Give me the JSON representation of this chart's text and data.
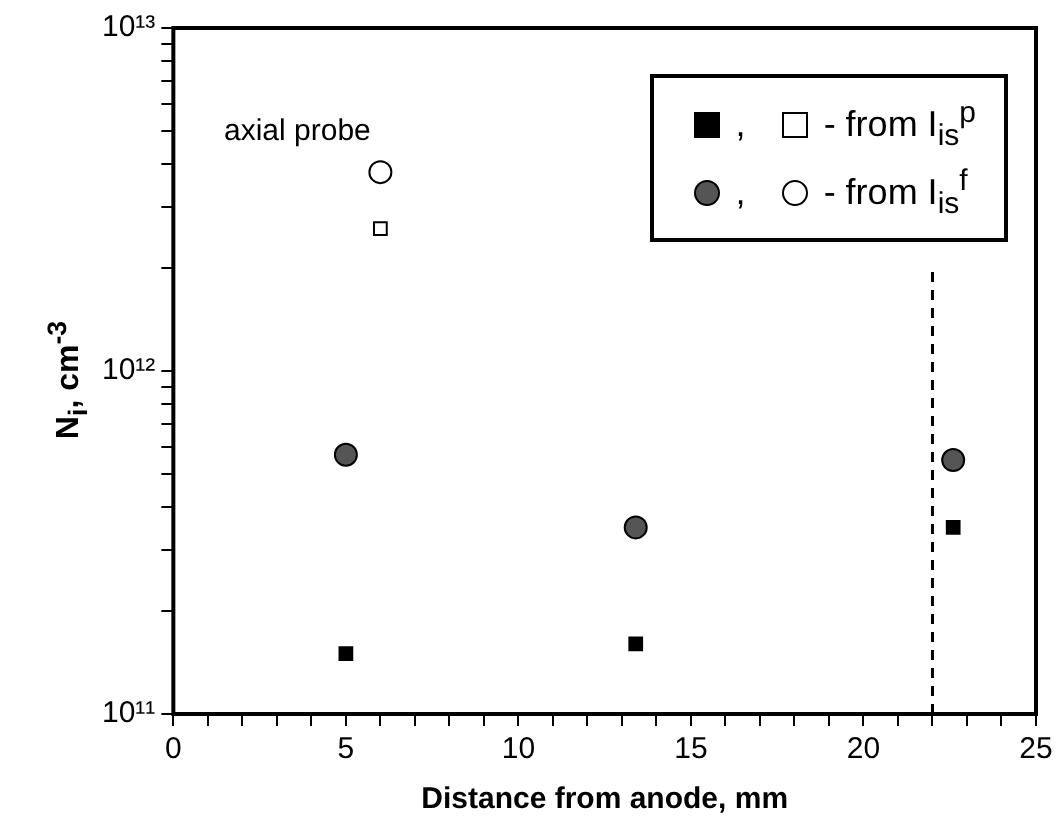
{
  "chart_data": {
    "type": "scatter",
    "xlabel": "Distance from anode, mm",
    "ylabel": "N$_{i}$, cm$^{-3}$",
    "log": "y",
    "grid": false,
    "legend": "top right",
    "xlim": [
      0,
      25
    ],
    "xticks": [
      0,
      {
        "value": 1,
        "label": null
      },
      {
        "value": 2,
        "label": null
      },
      {
        "value": 3,
        "label": null
      },
      {
        "value": 4,
        "label": null
      },
      5,
      {
        "value": 6,
        "label": null
      },
      {
        "value": 7,
        "label": null
      },
      {
        "value": 8,
        "label": null
      },
      {
        "value": 9,
        "label": null
      },
      10,
      {
        "value": 11,
        "label": null
      },
      {
        "value": 12,
        "label": null
      },
      {
        "value": 13,
        "label": null
      },
      {
        "value": 14,
        "label": null
      },
      15,
      {
        "value": 16,
        "label": null
      },
      {
        "value": 17,
        "label": null
      },
      {
        "value": 18,
        "label": null
      },
      {
        "value": 19,
        "label": null
      },
      20,
      {
        "value": 21,
        "label": null
      },
      {
        "value": 22,
        "label": null
      },
      {
        "value": 23,
        "label": null
      },
      {
        "value": 24,
        "label": null
      },
      25
    ],
    "ylim": [
      100000000000.0,
      10000000000000.0
    ],
    "yticks": [
      {
        "value": 100000000000.0,
        "label": "10¹¹"
      },
      {
        "value": 200000000000.0,
        "label": null
      },
      {
        "value": 300000000000.0,
        "label": null
      },
      {
        "value": 400000000000.0,
        "label": null
      },
      {
        "value": 500000000000.0,
        "label": null
      },
      {
        "value": 600000000000.0,
        "label": null
      },
      {
        "value": 700000000000.0,
        "label": null
      },
      {
        "value": 800000000000.0,
        "label": null
      },
      {
        "value": 900000000000.0,
        "label": null
      },
      {
        "value": 1000000000000.0,
        "label": "10¹²"
      },
      {
        "value": 2000000000000.0,
        "label": null
      },
      {
        "value": 3000000000000.0,
        "label": null
      },
      {
        "value": 4000000000000.0,
        "label": null
      },
      {
        "value": 5000000000000.0,
        "label": null
      },
      {
        "value": 6000000000000.0,
        "label": null
      },
      {
        "value": 7000000000000.0,
        "label": null
      },
      {
        "value": 8000000000000.0,
        "label": null
      },
      {
        "value": 9000000000000.0,
        "label": null
      },
      {
        "value": 10000000000000.0,
        "label": "10¹³"
      }
    ],
    "series": [
      {
        "name": ",",
        "color": "#000000",
        "marker": "square",
        "x": [
          5,
          13.4,
          22.6
        ],
        "values": [
          150000000000.0,
          160000000000.0,
          350000000000.0
        ]
      },
      {
        "name": "- from I$_{is}$$^{p}$",
        "color": "#ffffff",
        "marker": "square",
        "x": [
          6
        ],
        "values": [
          2600000000000.0
        ]
      },
      {
        "name": ",",
        "color": "#555555",
        "marker": "circle",
        "x": [
          5,
          13.4,
          22.6
        ],
        "values": [
          570000000000.0,
          350000000000.0,
          550000000000.0
        ]
      },
      {
        "name": "- from I$_{is}$$^{f}$",
        "color": "#ffffff",
        "marker": "circle",
        "x": [
          6
        ],
        "values": [
          3800000000000.0
        ]
      }
    ],
    "ref_lines": [
      {
        "axis": "x",
        "value": 22,
        "line_style": "dashed",
        "color": "#000000"
      }
    ],
    "annotations": [
      "axial probe"
    ]
  }
}
